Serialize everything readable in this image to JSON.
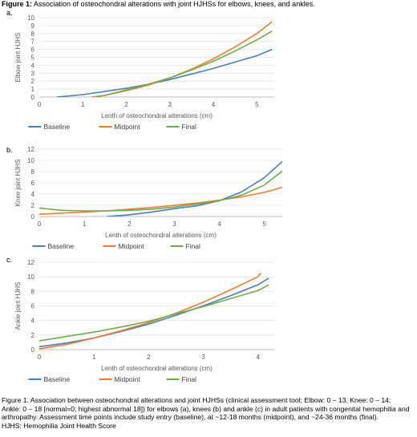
{
  "figure": {
    "title_bold": "Figure 1:",
    "title_rest": " Association of osteochondral alterations with joint HJHSs for elbows, knees, and ankles.",
    "caption": "Figure 1. Association between osteochondral alterations and joint HJHSs (clinical assessment tool; Elbow: 0 – 13, Knee: 0 – 14; Ankle: 0 – 18 [normal=0; highest abnormal 18]) for elbows (a), knees (b) and ankle (c) in adult patients with congenital hemophilia and arthropathy. Assessment time points include study entry (baseline), at ~12-18 months (midpoint), and ~24-36 months (final).",
    "abbrev": "HJHS: Hemophilia Joint Health Score"
  },
  "colors": {
    "Baseline": "#4a7ebb",
    "Midpoint": "#ed7d31",
    "Final": "#70ad47",
    "grid": "#e0e0e0",
    "axis": "#bfbfbf"
  },
  "chart_data": [
    {
      "panel": "a.",
      "type": "line",
      "title": "",
      "xlabel": "Lenth of osteochondral alterations (cm)",
      "ylabel": "Elbow joint HJHS",
      "xlim": [
        0,
        5.4
      ],
      "ylim": [
        0,
        10
      ],
      "xticks": [
        0,
        1,
        2,
        3,
        4,
        5
      ],
      "yticks": [
        0,
        1,
        2,
        3,
        4,
        5,
        6,
        7,
        8,
        9,
        10
      ],
      "grid": true,
      "legend": "bottom",
      "series": [
        {
          "name": "Baseline",
          "x": [
            0.4,
            1,
            1.5,
            2,
            2.5,
            3,
            3.5,
            4,
            4.5,
            5,
            5.35
          ],
          "y": [
            0,
            0.3,
            0.7,
            1.1,
            1.6,
            2.2,
            2.9,
            3.6,
            4.4,
            5.2,
            6.0
          ]
        },
        {
          "name": "Midpoint",
          "x": [
            1.2,
            1.5,
            2,
            2.5,
            3,
            3.5,
            4,
            4.5,
            5,
            5.35
          ],
          "y": [
            0,
            0.2,
            0.8,
            1.5,
            2.4,
            3.5,
            4.8,
            6.3,
            8.0,
            9.5
          ]
        },
        {
          "name": "Final",
          "x": [
            1.3,
            1.5,
            2,
            2.5,
            3,
            3.5,
            4,
            4.5,
            5,
            5.35
          ],
          "y": [
            0,
            0.2,
            0.9,
            1.6,
            2.4,
            3.4,
            4.5,
            5.8,
            7.2,
            8.3
          ]
        }
      ]
    },
    {
      "panel": "b.",
      "type": "line",
      "title": "",
      "xlabel": "Lenth of osteochondral alterations (cm)",
      "ylabel": "Knee joint HJHS",
      "xlim": [
        0,
        5.4
      ],
      "ylim": [
        0,
        12
      ],
      "xticks": [
        0,
        1,
        2,
        3,
        4,
        5
      ],
      "yticks": [
        0,
        2,
        4,
        6,
        8,
        10,
        12
      ],
      "grid": true,
      "legend": "bottom",
      "series": [
        {
          "name": "Baseline",
          "x": [
            1.5,
            2,
            2.5,
            3,
            3.5,
            4,
            4.5,
            5,
            5.4
          ],
          "y": [
            0,
            0.3,
            0.8,
            1.4,
            1.9,
            2.8,
            4.4,
            6.9,
            9.8
          ]
        },
        {
          "name": "Midpoint",
          "x": [
            0,
            0.5,
            1,
            1.5,
            2,
            2.5,
            3,
            3.5,
            4,
            4.5,
            5,
            5.4
          ],
          "y": [
            0.4,
            0.6,
            0.8,
            1.0,
            1.3,
            1.6,
            2.0,
            2.4,
            2.9,
            3.5,
            4.3,
            5.2
          ]
        },
        {
          "name": "Final",
          "x": [
            0,
            0.5,
            1,
            1.5,
            2,
            2.5,
            3,
            3.5,
            4,
            4.5,
            5,
            5.4
          ],
          "y": [
            1.5,
            1.1,
            1.0,
            1.0,
            1.1,
            1.3,
            1.7,
            2.2,
            2.8,
            3.8,
            5.6,
            8.1
          ]
        }
      ]
    },
    {
      "panel": "c.",
      "type": "line",
      "title": "",
      "xlabel": "Lenth of osteochondral alterations (cm)",
      "ylabel": "Ankle joint HJHS",
      "xlim": [
        0,
        4.3
      ],
      "ylim": [
        0,
        12
      ],
      "xticks": [
        0,
        1,
        2,
        3,
        4
      ],
      "yticks": [
        0,
        2,
        4,
        6,
        8,
        10,
        12
      ],
      "grid": true,
      "legend": "bottom",
      "series": [
        {
          "name": "Baseline",
          "x": [
            0,
            0.5,
            1,
            1.5,
            2,
            2.5,
            3,
            3.5,
            4,
            4.2
          ],
          "y": [
            0.4,
            0.9,
            1.6,
            2.5,
            3.5,
            4.7,
            6.0,
            7.4,
            8.9,
            9.8
          ]
        },
        {
          "name": "Midpoint",
          "x": [
            0,
            0.5,
            1,
            1.5,
            2,
            2.5,
            3,
            3.5,
            4,
            4.05
          ],
          "y": [
            0.1,
            0.7,
            1.6,
            2.6,
            3.7,
            5.0,
            6.5,
            8.2,
            10.0,
            10.5
          ]
        },
        {
          "name": "Final",
          "x": [
            0,
            0.5,
            1,
            1.5,
            2,
            2.5,
            3,
            3.5,
            4,
            4.2
          ],
          "y": [
            1.2,
            1.8,
            2.4,
            3.1,
            3.9,
            4.9,
            5.9,
            7.0,
            8.1,
            8.9
          ]
        }
      ]
    }
  ]
}
